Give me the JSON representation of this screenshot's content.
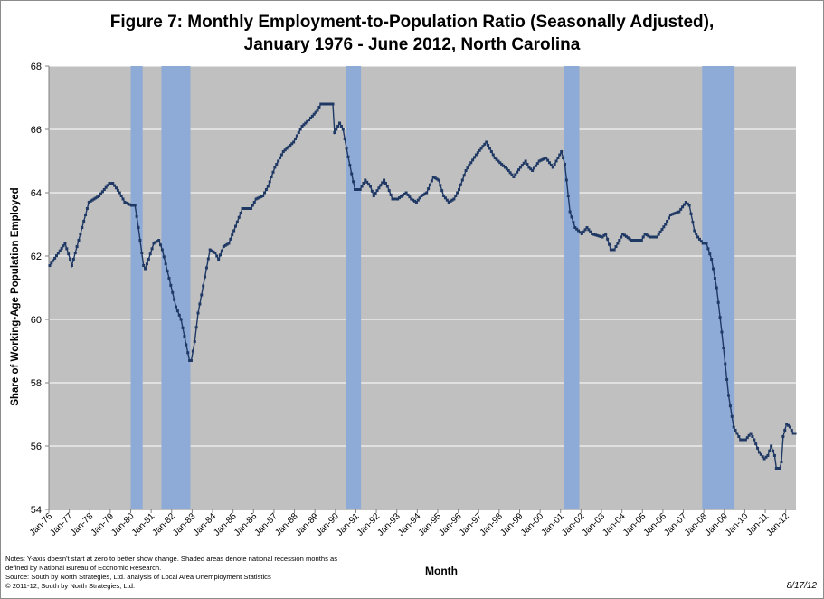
{
  "title_line1": "Figure 7: Monthly Employment-to-Population  Ratio (Seasonally Adjusted),",
  "title_line2": "January 1976 - June 2012, North Carolina",
  "ylabel": "Share of  Working-Age Population  Employed",
  "xlabel": "Month",
  "notes": [
    "Notes: Y-axis doesn't start at zero to better show change. Shaded areas denote national recession months as",
    "defined by National Bureau of Economic Research.",
    "Source:  South by North Strategies, Ltd. analysis of Local Area Unemployment Statistics",
    "© 2011-12, South by North Strategies, Ltd."
  ],
  "date_stamp": "8/17/12",
  "colors": {
    "plot_bg": "#c0c0c0",
    "line": "#1f3864",
    "recession": "#8eaad6",
    "grid": "#ffffff"
  },
  "chart_data": {
    "type": "line",
    "ylim": [
      54,
      68
    ],
    "yticks": [
      54,
      56,
      58,
      60,
      62,
      64,
      66,
      68
    ],
    "grid": true,
    "x_start": "Jan-76",
    "x_end": "Jun-12",
    "xtick_labels": [
      "Jan-76",
      "Jan-77",
      "Jan-78",
      "Jan-79",
      "Jan-80",
      "Jan-81",
      "Jan-82",
      "Jan-83",
      "Jan-84",
      "Jan-85",
      "Jan-86",
      "Jan-87",
      "Jan-88",
      "Jan-89",
      "Jan-90",
      "Jan-91",
      "Jan-92",
      "Jan-93",
      "Jan-94",
      "Jan-95",
      "Jan-96",
      "Jan-97",
      "Jan-98",
      "Jan-99",
      "Jan-00",
      "Jan-01",
      "Jan-02",
      "Jan-03",
      "Jan-04",
      "Jan-05",
      "Jan-06",
      "Jan-07",
      "Jan-08",
      "Jan-09",
      "Jan-10",
      "Jan-11",
      "Jan-12"
    ],
    "recessions": [
      [
        "Jan-80",
        "Jul-80"
      ],
      [
        "Jul-81",
        "Nov-82"
      ],
      [
        "Jul-90",
        "Mar-91"
      ],
      [
        "Mar-01",
        "Nov-01"
      ],
      [
        "Dec-07",
        "Jun-09"
      ]
    ],
    "key_points": [
      [
        "Jan-76",
        61.7
      ],
      [
        "Oct-76",
        62.4
      ],
      [
        "Jan-77",
        61.9
      ],
      [
        "Feb-77",
        61.7
      ],
      [
        "Dec-77",
        63.7
      ],
      [
        "Jun-78",
        63.9
      ],
      [
        "Dec-78",
        64.3
      ],
      [
        "Feb-79",
        64.3
      ],
      [
        "Jun-79",
        64.0
      ],
      [
        "Sep-79",
        63.7
      ],
      [
        "Jan-80",
        63.6
      ],
      [
        "Mar-80",
        63.6
      ],
      [
        "May-80",
        62.9
      ],
      [
        "Aug-80",
        61.7
      ],
      [
        "Sep-80",
        61.6
      ],
      [
        "Nov-80",
        61.9
      ],
      [
        "Feb-81",
        62.4
      ],
      [
        "May-81",
        62.5
      ],
      [
        "Jul-81",
        62.2
      ],
      [
        "Nov-81",
        61.3
      ],
      [
        "Mar-82",
        60.4
      ],
      [
        "Jun-82",
        60.0
      ],
      [
        "Sep-82",
        59.2
      ],
      [
        "Nov-82",
        58.7
      ],
      [
        "Dec-82",
        58.7
      ],
      [
        "Feb-83",
        59.3
      ],
      [
        "Apr-83",
        60.2
      ],
      [
        "Nov-83",
        62.2
      ],
      [
        "Feb-84",
        62.1
      ],
      [
        "Apr-84",
        61.9
      ],
      [
        "Jul-84",
        62.3
      ],
      [
        "Oct-84",
        62.4
      ],
      [
        "Jan-85",
        62.8
      ],
      [
        "Jun-85",
        63.5
      ],
      [
        "Nov-85",
        63.5
      ],
      [
        "Feb-86",
        63.8
      ],
      [
        "Jun-86",
        63.9
      ],
      [
        "Sep-86",
        64.2
      ],
      [
        "Jan-87",
        64.8
      ],
      [
        "Jun-87",
        65.3
      ],
      [
        "Dec-87",
        65.6
      ],
      [
        "May-88",
        66.1
      ],
      [
        "Sep-88",
        66.3
      ],
      [
        "Feb-89",
        66.6
      ],
      [
        "Apr-89",
        66.8
      ],
      [
        "Nov-89",
        66.8
      ],
      [
        "Dec-89",
        65.9
      ],
      [
        "Mar-90",
        66.2
      ],
      [
        "May-90",
        66.0
      ],
      [
        "Jul-90",
        65.4
      ],
      [
        "Oct-90",
        64.6
      ],
      [
        "Dec-90",
        64.1
      ],
      [
        "Mar-91",
        64.1
      ],
      [
        "Jun-91",
        64.4
      ],
      [
        "Sep-91",
        64.2
      ],
      [
        "Nov-91",
        63.9
      ],
      [
        "May-92",
        64.4
      ],
      [
        "Jul-92",
        64.2
      ],
      [
        "Oct-92",
        63.8
      ],
      [
        "Jan-93",
        63.8
      ],
      [
        "Jun-93",
        64.0
      ],
      [
        "Sep-93",
        63.8
      ],
      [
        "Dec-93",
        63.7
      ],
      [
        "Mar-94",
        63.9
      ],
      [
        "Jun-94",
        64.0
      ],
      [
        "Oct-94",
        64.5
      ],
      [
        "Jan-95",
        64.4
      ],
      [
        "Apr-95",
        63.9
      ],
      [
        "Jul-95",
        63.7
      ],
      [
        "Oct-95",
        63.8
      ],
      [
        "Jan-96",
        64.1
      ],
      [
        "May-96",
        64.7
      ],
      [
        "Nov-96",
        65.2
      ],
      [
        "May-97",
        65.6
      ],
      [
        "Oct-97",
        65.1
      ],
      [
        "Feb-98",
        64.9
      ],
      [
        "Jun-98",
        64.7
      ],
      [
        "Sep-98",
        64.5
      ],
      [
        "Jan-99",
        64.8
      ],
      [
        "Apr-99",
        65.0
      ],
      [
        "Jun-99",
        64.8
      ],
      [
        "Aug-99",
        64.7
      ],
      [
        "Dec-99",
        65.0
      ],
      [
        "Apr-00",
        65.1
      ],
      [
        "Aug-00",
        64.8
      ],
      [
        "Oct-00",
        65.0
      ],
      [
        "Jan-01",
        65.3
      ],
      [
        "Mar-01",
        64.9
      ],
      [
        "Jun-01",
        63.4
      ],
      [
        "Sep-01",
        62.9
      ],
      [
        "Nov-01",
        62.8
      ],
      [
        "Jan-02",
        62.7
      ],
      [
        "Apr-02",
        62.9
      ],
      [
        "Jul-02",
        62.7
      ],
      [
        "Jan-03",
        62.6
      ],
      [
        "Mar-03",
        62.7
      ],
      [
        "Jun-03",
        62.2
      ],
      [
        "Aug-03",
        62.2
      ],
      [
        "Nov-03",
        62.5
      ],
      [
        "Jan-04",
        62.7
      ],
      [
        "Jun-04",
        62.5
      ],
      [
        "Dec-04",
        62.5
      ],
      [
        "Feb-05",
        62.7
      ],
      [
        "May-05",
        62.6
      ],
      [
        "Sep-05",
        62.6
      ],
      [
        "Feb-06",
        63.0
      ],
      [
        "May-06",
        63.3
      ],
      [
        "Oct-06",
        63.4
      ],
      [
        "Feb-07",
        63.7
      ],
      [
        "Apr-07",
        63.6
      ],
      [
        "Jul-07",
        62.8
      ],
      [
        "Sep-07",
        62.6
      ],
      [
        "Dec-07",
        62.4
      ],
      [
        "Feb-08",
        62.4
      ],
      [
        "May-08",
        61.9
      ],
      [
        "Aug-08",
        61.0
      ],
      [
        "Nov-08",
        59.6
      ],
      [
        "Mar-09",
        57.6
      ],
      [
        "Jun-09",
        56.6
      ],
      [
        "Aug-09",
        56.4
      ],
      [
        "Oct-09",
        56.2
      ],
      [
        "Jan-10",
        56.2
      ],
      [
        "Apr-10",
        56.4
      ],
      [
        "Jun-10",
        56.2
      ],
      [
        "Sep-10",
        55.8
      ],
      [
        "Dec-10",
        55.6
      ],
      [
        "Feb-11",
        55.7
      ],
      [
        "Apr-11",
        56.0
      ],
      [
        "Jun-11",
        55.7
      ],
      [
        "Jul-11",
        55.3
      ],
      [
        "Sep-11",
        55.3
      ],
      [
        "Oct-11",
        55.5
      ],
      [
        "Nov-11",
        56.3
      ],
      [
        "Jan-12",
        56.7
      ],
      [
        "Mar-12",
        56.6
      ],
      [
        "May-12",
        56.4
      ],
      [
        "Jun-12",
        56.4
      ]
    ]
  }
}
